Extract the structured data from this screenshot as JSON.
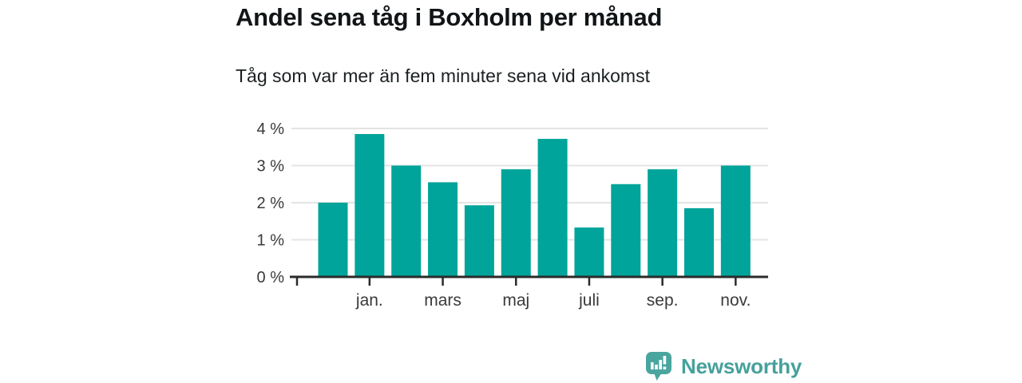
{
  "header": {
    "title": "Andel sena tåg i Boxholm per månad",
    "subtitle": "Tåg som var mer än fem minuter sena vid ankomst"
  },
  "chart_data": {
    "type": "bar",
    "title": "Andel sena tåg i Boxholm per månad",
    "subtitle": "Tåg som var mer än fem minuter sena vid ankomst",
    "unit": "%",
    "ylim": [
      0,
      4
    ],
    "grid": true,
    "legend": "none",
    "bar_color": "#00a49a",
    "values": [
      2.0,
      3.85,
      3.0,
      2.55,
      1.93,
      2.9,
      3.72,
      1.33,
      2.5,
      2.9,
      1.85,
      3.0
    ],
    "y_axis": {
      "ticks": [
        {
          "value": 0,
          "label": "0 %"
        },
        {
          "value": 1,
          "label": "1 %"
        },
        {
          "value": 2,
          "label": "2 %"
        },
        {
          "value": 3,
          "label": "3 %"
        },
        {
          "value": 4,
          "label": "4 %"
        }
      ]
    },
    "x_axis": {
      "ticks": [
        {
          "bar_index": 1,
          "label": "jan."
        },
        {
          "bar_index": 3,
          "label": "mars"
        },
        {
          "bar_index": 5,
          "label": "maj"
        },
        {
          "bar_index": 7,
          "label": "juli"
        },
        {
          "bar_index": 9,
          "label": "sep."
        },
        {
          "bar_index": 11,
          "label": "nov."
        }
      ]
    }
  },
  "branding": {
    "logo_text": "Newsworthy",
    "logo_text_color": "#45a19b",
    "logo_icon_color": "#4aa59f",
    "icon": "newsworthy-speech-bubble-bar-chart-icon"
  },
  "colors": {
    "bar": "#00a49a",
    "grid": "#e4e4e4",
    "axis": "#2b2b2b",
    "tick_text": "#3a3a3a",
    "title": "#111517",
    "subtitle": "#1b2022"
  }
}
